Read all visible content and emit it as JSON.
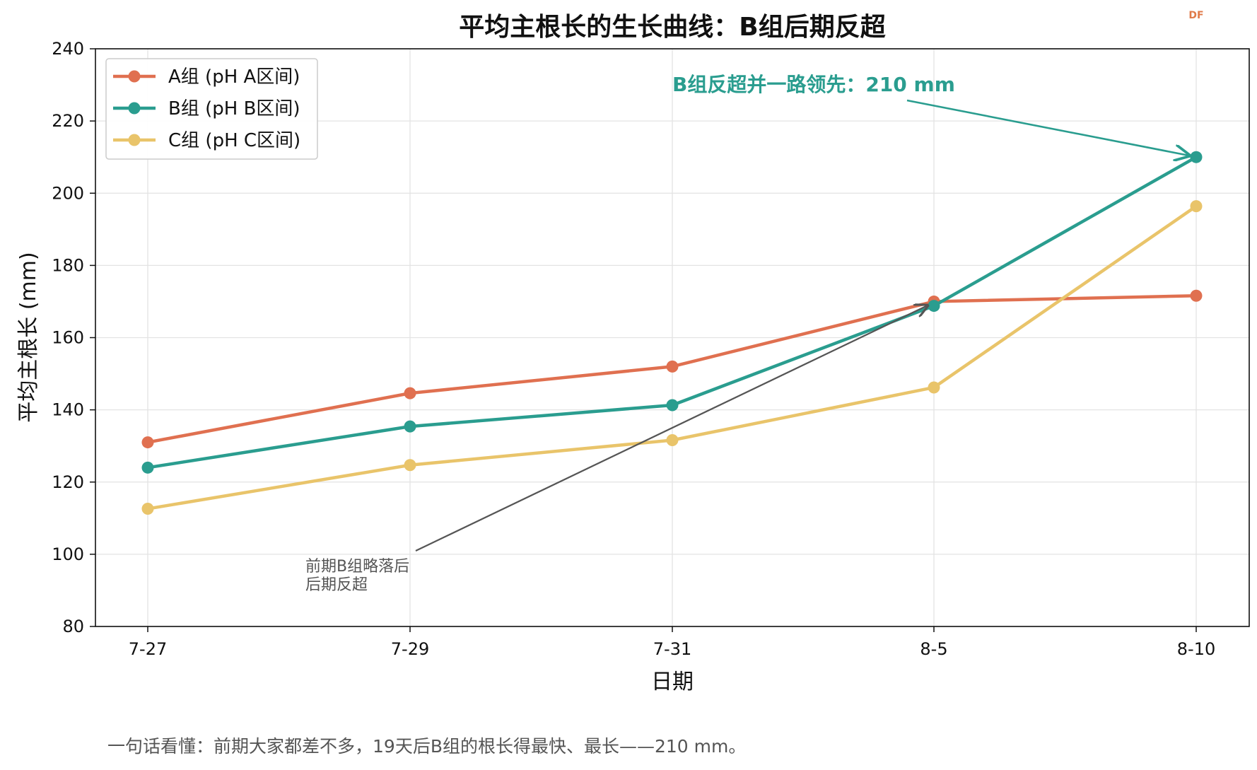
{
  "chart_data": {
    "type": "line",
    "title": "平均主根长的生长曲线：B组后期反超",
    "xlabel": "日期",
    "ylabel": "平均主根长 (mm)",
    "categories": [
      "7-27",
      "7-29",
      "7-31",
      "8-5",
      "8-10"
    ],
    "ylim": [
      80,
      240
    ],
    "yticks": [
      "80",
      "100",
      "120",
      "140",
      "160",
      "180",
      "200",
      "220",
      "240"
    ],
    "grid": true,
    "legend_position": "top-left",
    "series": [
      {
        "name": "A组 (pH A区间)",
        "color": "#e07050",
        "values": [
          131,
          144.6,
          152,
          170,
          171.6
        ]
      },
      {
        "name": "B组 (pH B区间)",
        "color": "#2a9d8f",
        "values": [
          124,
          135.4,
          141.3,
          168.8,
          210
        ]
      },
      {
        "name": "C组 (pH C区间)",
        "color": "#e9c46a",
        "values": [
          112.6,
          124.7,
          131.6,
          146.2,
          196.4
        ]
      }
    ],
    "annotations": [
      {
        "text": "B组反超并一路领先：210 mm",
        "color": "#2a9d8f"
      },
      {
        "line1": "前期B组略落后",
        "line2": "后期反超",
        "color": "#555555"
      }
    ],
    "footnote": "一句话看懂：前期大家都差不多，19天后B组的根长得最快、最长——210 mm。",
    "watermark": "DF"
  }
}
